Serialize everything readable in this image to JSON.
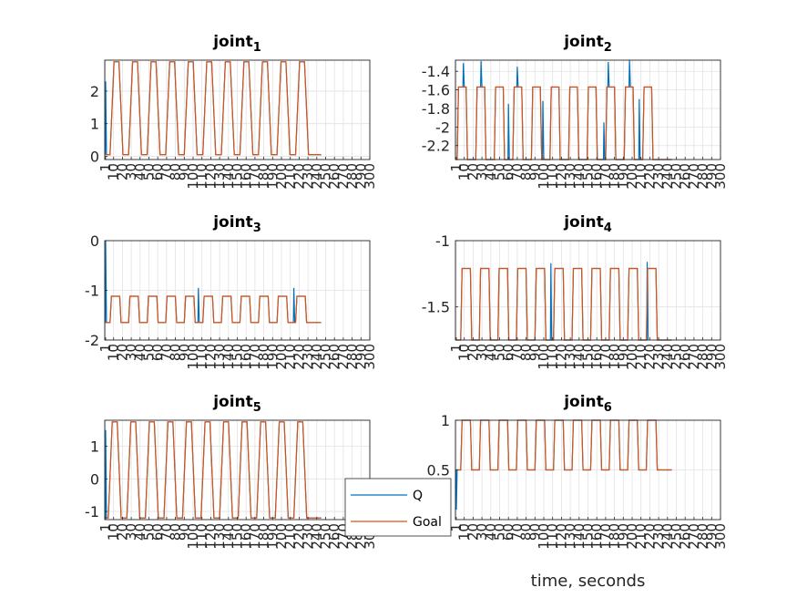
{
  "legend": {
    "entries": [
      {
        "name": "Q",
        "color": "#0072BD"
      },
      {
        "name": "Goal",
        "color": "#D95319"
      }
    ]
  },
  "chart_data": [
    {
      "type": "line",
      "title_base": "joint",
      "title_sub": "1",
      "xlim": [
        0,
        300
      ],
      "xticks": [
        1,
        10,
        20,
        30,
        40,
        50,
        60,
        70,
        80,
        90,
        100,
        110,
        120,
        130,
        140,
        150,
        160,
        170,
        180,
        190,
        200,
        210,
        220,
        230,
        240,
        250,
        260,
        270,
        280,
        290,
        300
      ],
      "ylim": [
        -0.1,
        2.95
      ],
      "yticks": [
        0,
        1,
        2
      ],
      "cycle": {
        "period": 21,
        "duty": 0.48,
        "ramp": 4.5,
        "count": 11,
        "start": 6,
        "end": 245,
        "low": 0.05,
        "high": 2.9
      },
      "spikes": [
        {
          "x": 1,
          "y": 2.3
        }
      ],
      "series": [
        {
          "name": "Q"
        },
        {
          "name": "Goal"
        }
      ]
    },
    {
      "type": "line",
      "title_base": "joint",
      "title_sub": "2",
      "xlim": [
        0,
        300
      ],
      "xticks": [
        1,
        10,
        20,
        30,
        40,
        50,
        60,
        70,
        80,
        90,
        100,
        110,
        120,
        130,
        140,
        150,
        160,
        170,
        180,
        190,
        200,
        210,
        220,
        230,
        240,
        250,
        260,
        270,
        280,
        290,
        300
      ],
      "ylim": [
        -2.35,
        -1.28
      ],
      "yticks": [
        -2.2,
        -2,
        -1.8,
        -1.6,
        -1.4
      ],
      "cycle": {
        "period": 21,
        "duty": 0.48,
        "ramp": 1.5,
        "count": 11,
        "start": 2,
        "end": 245,
        "low": -2.35,
        "high": -1.57
      },
      "spikes": [
        {
          "x": 9,
          "y": -1.31
        },
        {
          "x": 29,
          "y": -1.29
        },
        {
          "x": 70,
          "y": -1.35
        },
        {
          "x": 173,
          "y": -1.3
        },
        {
          "x": 197,
          "y": -1.28
        },
        {
          "x": 60,
          "y": -1.75
        },
        {
          "x": 99,
          "y": -1.72
        },
        {
          "x": 168,
          "y": -1.95
        },
        {
          "x": 208,
          "y": -1.7
        }
      ],
      "series": [
        {
          "name": "Q"
        },
        {
          "name": "Goal"
        }
      ]
    },
    {
      "type": "line",
      "title_base": "joint",
      "title_sub": "3",
      "xlim": [
        0,
        300
      ],
      "xticks": [
        1,
        10,
        20,
        30,
        40,
        50,
        60,
        70,
        80,
        90,
        100,
        110,
        120,
        130,
        140,
        150,
        160,
        170,
        180,
        190,
        200,
        210,
        220,
        230,
        240,
        250,
        260,
        270,
        280,
        290,
        300
      ],
      "ylim": [
        -2,
        0
      ],
      "yticks": [
        -2,
        -1,
        0
      ],
      "cycle": {
        "period": 21,
        "duty": 0.52,
        "ramp": 1.5,
        "count": 11,
        "start": 6,
        "end": 245,
        "low": -1.65,
        "high": -1.12
      },
      "spikes": [
        {
          "x": 1,
          "y": 0
        },
        {
          "x": 106,
          "y": -0.95
        },
        {
          "x": 214,
          "y": -0.95
        }
      ],
      "series": [
        {
          "name": "Q"
        },
        {
          "name": "Goal"
        }
      ]
    },
    {
      "type": "line",
      "title_base": "joint",
      "title_sub": "4",
      "xlim": [
        0,
        300
      ],
      "xticks": [
        1,
        10,
        20,
        30,
        40,
        50,
        60,
        70,
        80,
        90,
        100,
        110,
        120,
        130,
        140,
        150,
        160,
        170,
        180,
        190,
        200,
        210,
        220,
        230,
        240,
        250,
        260,
        270,
        280,
        290,
        300
      ],
      "ylim": [
        -1.75,
        -1
      ],
      "yticks": [
        -1.5,
        -1
      ],
      "cycle": {
        "period": 21,
        "duty": 0.52,
        "ramp": 1.5,
        "count": 11,
        "start": 6,
        "end": 245,
        "low": -1.75,
        "high": -1.21
      },
      "spikes": [
        {
          "x": 108,
          "y": -1.17
        },
        {
          "x": 217,
          "y": -1.16
        }
      ],
      "series": [
        {
          "name": "Q"
        },
        {
          "name": "Goal"
        }
      ]
    },
    {
      "type": "line",
      "title_base": "joint",
      "title_sub": "5",
      "xlim": [
        0,
        300
      ],
      "xticks": [
        1,
        10,
        20,
        30,
        40,
        50,
        60,
        70,
        80,
        90,
        100,
        110,
        120,
        130,
        140,
        150,
        160,
        170,
        180,
        190,
        200,
        210,
        220,
        230,
        240,
        250,
        260,
        270,
        280,
        290,
        300
      ],
      "ylim": [
        -1.25,
        1.8
      ],
      "yticks": [
        -1,
        0,
        1
      ],
      "cycle": {
        "period": 21,
        "duty": 0.48,
        "ramp": 4.5,
        "count": 11,
        "start": 4,
        "end": 245,
        "low": -1.2,
        "high": 1.75
      },
      "spikes": [
        {
          "x": 1,
          "y": 1.5
        }
      ],
      "series": [
        {
          "name": "Q"
        },
        {
          "name": "Goal"
        }
      ]
    },
    {
      "type": "line",
      "title_base": "joint",
      "title_sub": "6",
      "xlim": [
        0,
        300
      ],
      "xticks": [
        1,
        10,
        20,
        30,
        40,
        50,
        60,
        70,
        80,
        90,
        100,
        110,
        120,
        130,
        140,
        150,
        160,
        170,
        180,
        190,
        200,
        210,
        220,
        230,
        240,
        250,
        260,
        270,
        280,
        290,
        300
      ],
      "ylim": [
        0,
        1
      ],
      "yticks": [
        0.5,
        1
      ],
      "xlabel": "time, seconds",
      "cycle": {
        "period": 21,
        "duty": 0.52,
        "ramp": 1.5,
        "count": 11,
        "start": 6,
        "end": 245,
        "low": 0.5,
        "high": 1.0
      },
      "spikes": [
        {
          "x": 1,
          "y": 0.1
        }
      ],
      "series": [
        {
          "name": "Q"
        },
        {
          "name": "Goal"
        }
      ]
    }
  ]
}
